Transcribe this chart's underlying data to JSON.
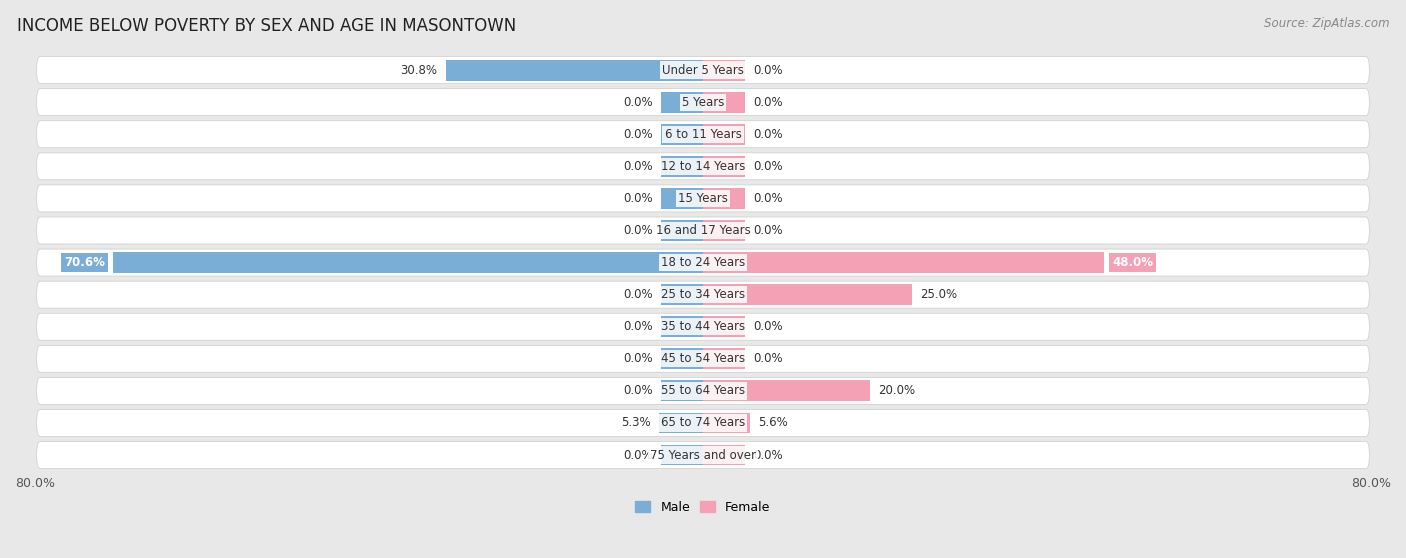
{
  "title": "INCOME BELOW POVERTY BY SEX AND AGE IN MASONTOWN",
  "source": "Source: ZipAtlas.com",
  "categories": [
    "Under 5 Years",
    "5 Years",
    "6 to 11 Years",
    "12 to 14 Years",
    "15 Years",
    "16 and 17 Years",
    "18 to 24 Years",
    "25 to 34 Years",
    "35 to 44 Years",
    "45 to 54 Years",
    "55 to 64 Years",
    "65 to 74 Years",
    "75 Years and over"
  ],
  "male_values": [
    30.8,
    0.0,
    0.0,
    0.0,
    0.0,
    0.0,
    70.6,
    0.0,
    0.0,
    0.0,
    0.0,
    5.3,
    0.0
  ],
  "female_values": [
    0.0,
    0.0,
    0.0,
    0.0,
    0.0,
    0.0,
    48.0,
    25.0,
    0.0,
    0.0,
    20.0,
    5.6,
    0.0
  ],
  "male_color": "#7aaed6",
  "female_color": "#f4a0b5",
  "male_label": "Male",
  "female_label": "Female",
  "xlim": 80.0,
  "stub_size": 5.0,
  "background_color": "#e8e8e8",
  "bar_bg_color": "#ffffff",
  "row_bg_color": "#f5f5f5",
  "title_fontsize": 12,
  "source_fontsize": 8.5,
  "label_fontsize": 8.5,
  "cat_fontsize": 8.5,
  "axis_label_fontsize": 9
}
